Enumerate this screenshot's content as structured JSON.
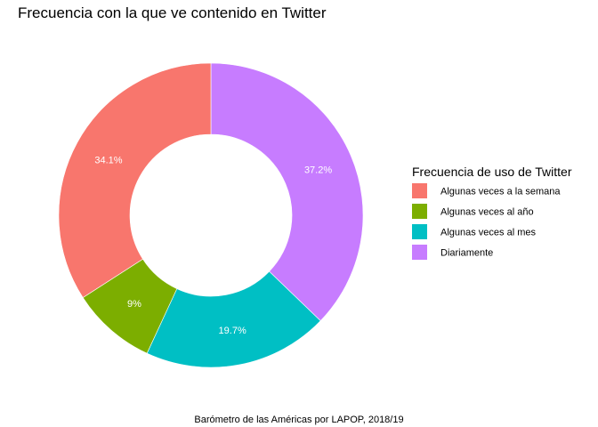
{
  "chart_data": {
    "type": "pie",
    "title": "Frecuencia con la que ve contenido en Twitter",
    "caption": "Barómetro de las Américas por LAPOP, 2018/19",
    "legend_title": "Frecuencia de uso de Twitter",
    "legend_position": "right",
    "donut": true,
    "slices": [
      {
        "name": "Algunas veces a la semana",
        "value": 34.1,
        "label": "34.1%",
        "color": "#F8766D"
      },
      {
        "name": "Algunas veces al año",
        "value": 9,
        "label": "9%",
        "color": "#7CAE00"
      },
      {
        "name": "Algunas veces al mes",
        "value": 19.7,
        "label": "19.7%",
        "color": "#00BFC4"
      },
      {
        "name": "Diariamente",
        "value": 37.2,
        "label": "37.2%",
        "color": "#C77CFF"
      }
    ]
  }
}
